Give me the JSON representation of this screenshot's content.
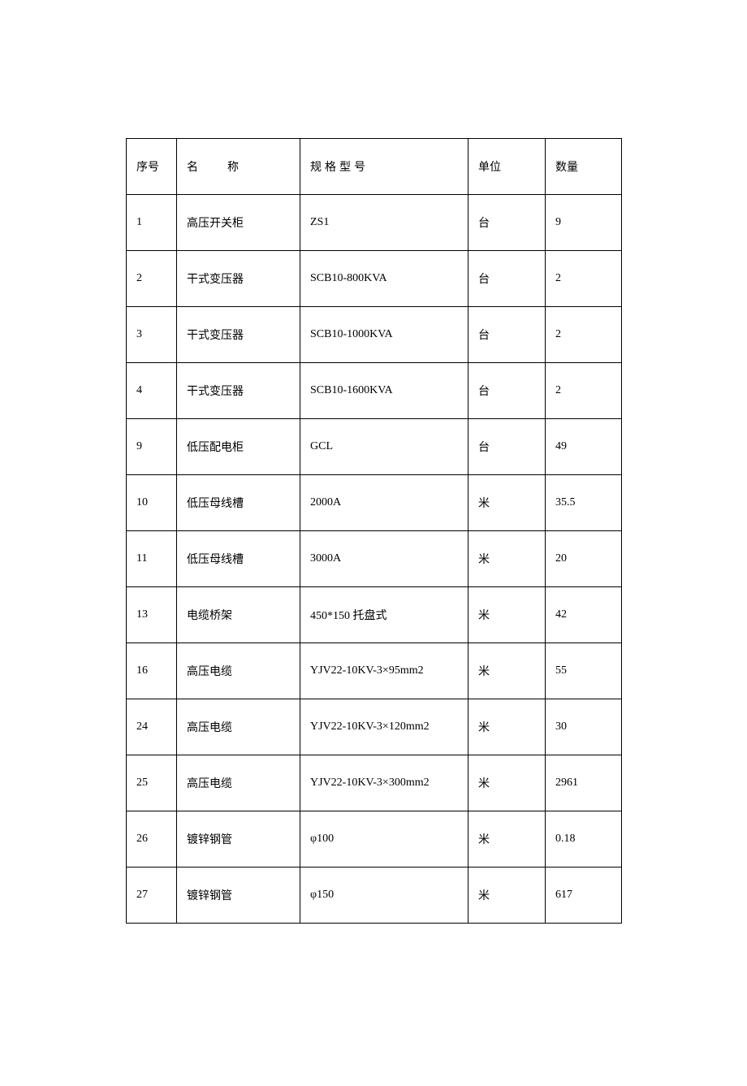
{
  "table": {
    "columns": {
      "seq": "序号",
      "name": "名称",
      "spec": "规格型号",
      "unit": "单位",
      "qty": "数量"
    },
    "column_widths": {
      "seq": 62,
      "name": 152,
      "spec": 207,
      "unit": 95,
      "qty": 94
    },
    "rows": [
      {
        "seq": "1",
        "name": "高压开关柜",
        "spec": "ZS1",
        "unit": "台",
        "qty": "9"
      },
      {
        "seq": "2",
        "name": "干式变压器",
        "spec": "SCB10-800KVA",
        "unit": "台",
        "qty": "2"
      },
      {
        "seq": "3",
        "name": "干式变压器",
        "spec": "SCB10-1000KVA",
        "unit": "台",
        "qty": "2"
      },
      {
        "seq": "4",
        "name": "干式变压器",
        "spec": "SCB10-1600KVA",
        "unit": "台",
        "qty": "2"
      },
      {
        "seq": "9",
        "name": "低压配电柜",
        "spec": "GCL",
        "unit": "台",
        "qty": "49"
      },
      {
        "seq": "10",
        "name": "低压母线槽",
        "spec": "2000A",
        "unit": "米",
        "qty": "35.5"
      },
      {
        "seq": "11",
        "name": "低压母线槽",
        "spec": "3000A",
        "unit": "米",
        "qty": "20"
      },
      {
        "seq": "13",
        "name": "电缆桥架",
        "spec": "450*150 托盘式",
        "unit": "米",
        "qty": "42"
      },
      {
        "seq": "16",
        "name": "高压电缆",
        "spec": "YJV22-10KV-3×95mm2",
        "unit": "米",
        "qty": "55"
      },
      {
        "seq": "24",
        "name": "高压电缆",
        "spec": "YJV22-10KV-3×120mm2",
        "unit": "米",
        "qty": "30"
      },
      {
        "seq": "25",
        "name": "高压电缆",
        "spec": "YJV22-10KV-3×300mm2",
        "unit": "米",
        "qty": "2961"
      },
      {
        "seq": "26",
        "name": "镀锌钢管",
        "spec": "φ100",
        "unit": "米",
        "qty": "0.18"
      },
      {
        "seq": "27",
        "name": "镀锌钢管",
        "spec": "φ150",
        "unit": "米",
        "qty": "617"
      }
    ],
    "styling": {
      "border_color": "#000000",
      "border_width": 1.5,
      "background_color": "#ffffff",
      "text_color": "#000000",
      "font_family": "SimSun",
      "font_size": 14,
      "cell_padding_vertical": 24,
      "cell_padding_horizontal": 12,
      "name_header_letter_spacing": 36,
      "spec_header_letter_spacing": 4
    }
  }
}
